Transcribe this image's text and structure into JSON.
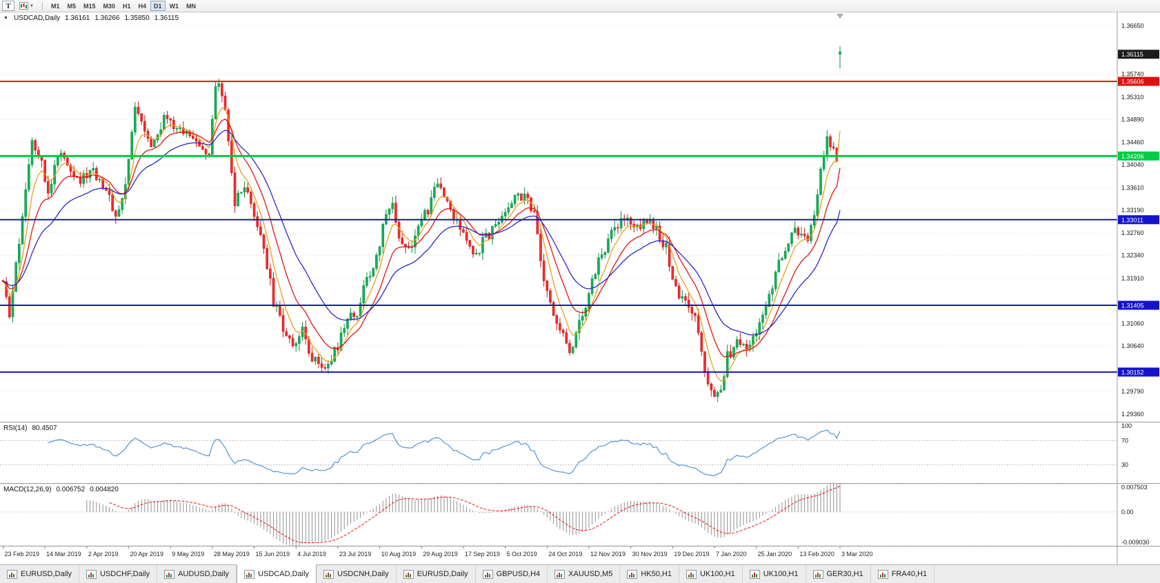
{
  "toolbar": {
    "tool_button_label": "T",
    "timeframes": [
      "M1",
      "M5",
      "M15",
      "M30",
      "H1",
      "H4",
      "D1",
      "W1",
      "MN"
    ],
    "active_timeframe": "D1"
  },
  "tabs": {
    "items": [
      {
        "label": "EURUSD,Daily"
      },
      {
        "label": "USDCHF,Daily"
      },
      {
        "label": "AUDUSD,Daily"
      },
      {
        "label": "USDCAD,Daily"
      },
      {
        "label": "USDCNH,Daily"
      },
      {
        "label": "EURUSD,Daily"
      },
      {
        "label": "GBPUSD,H4"
      },
      {
        "label": "XAUUSD,M5"
      },
      {
        "label": "HK50,H1"
      },
      {
        "label": "UK100,H1"
      },
      {
        "label": "UK100,H1"
      },
      {
        "label": "GER30,H1"
      },
      {
        "label": "FRA40,H1"
      }
    ],
    "active_index": 3
  },
  "chart_data": {
    "type": "candlestick",
    "title": "USDCAD,Daily",
    "ohlc_display": {
      "open": "1.36161",
      "high": "1.36266",
      "low": "1.35850",
      "close": "1.36115"
    },
    "bar_count": 261,
    "price_range": [
      1.2922,
      1.369
    ],
    "y_axis_labels": [
      "1.36650",
      "1.35740",
      "1.35310",
      "1.34890",
      "1.34460",
      "1.34040",
      "1.33610",
      "1.33190",
      "1.32760",
      "1.32340",
      "1.31910",
      "1.31060",
      "1.30640",
      "1.29790",
      "1.29360"
    ],
    "x_labels": [
      "23 Feb 2019",
      "14 Mar 2019",
      "2 Apr 2019",
      "20 Apr 2019",
      "9 May 2019",
      "28 May 2019",
      "15 Jun 2019",
      "4 Jul 2019",
      "23 Jul 2019",
      "10 Aug 2019",
      "29 Aug 2019",
      "17 Sep 2019",
      "5 Oct 2019",
      "24 Oct 2019",
      "12 Nov 2019",
      "30 Nov 2019",
      "19 Dec 2019",
      "7 Jan 2020",
      "25 Jan 2020",
      "13 Feb 2020",
      "3 Mar 2020"
    ],
    "x_label_every_bars": 13,
    "price_lines": [
      {
        "label": "1.36115",
        "value": 1.36115,
        "color": "#1c1c1c",
        "text_color": "#ffffff",
        "line": false,
        "width": 0,
        "name": "current-price"
      },
      {
        "label": "1.35606",
        "value": 1.35606,
        "color": "#dd1111",
        "text_color": "#ffffff",
        "line": true,
        "width": 2,
        "name": "resistance-line"
      },
      {
        "label": "1.34206",
        "value": 1.34206,
        "color": "#00cc44",
        "text_color": "#ffffff",
        "line": true,
        "width": 3,
        "name": "green-level-line"
      },
      {
        "label": "1.33011",
        "value": 1.33011,
        "color": "#1414cc",
        "text_color": "#ffffff",
        "line": true,
        "width": 2,
        "name": "blue-level-line-1"
      },
      {
        "label": "1.31405",
        "value": 1.31405,
        "color": "#1414cc",
        "text_color": "#ffffff",
        "line": true,
        "width": 2,
        "name": "blue-level-line-2"
      },
      {
        "label": "1.30152",
        "value": 1.30152,
        "color": "#1414cc",
        "text_color": "#ffffff",
        "line": true,
        "width": 2,
        "name": "blue-level-line-3"
      }
    ],
    "close_anchors": [
      [
        0,
        1.3175
      ],
      [
        2,
        1.312
      ],
      [
        4,
        1.321
      ],
      [
        7,
        1.3365
      ],
      [
        9,
        1.3452
      ],
      [
        12,
        1.342
      ],
      [
        14,
        1.3345
      ],
      [
        17,
        1.3425
      ],
      [
        20,
        1.3408
      ],
      [
        24,
        1.3375
      ],
      [
        28,
        1.3395
      ],
      [
        32,
        1.3358
      ],
      [
        35,
        1.3308
      ],
      [
        38,
        1.336
      ],
      [
        41,
        1.3518
      ],
      [
        44,
        1.3478
      ],
      [
        46,
        1.3438
      ],
      [
        50,
        1.3488
      ],
      [
        53,
        1.3475
      ],
      [
        57,
        1.3462
      ],
      [
        61,
        1.3445
      ],
      [
        64,
        1.3428
      ],
      [
        66,
        1.3542
      ],
      [
        67,
        1.355
      ],
      [
        69,
        1.3502
      ],
      [
        72,
        1.333
      ],
      [
        75,
        1.3362
      ],
      [
        78,
        1.3302
      ],
      [
        81,
        1.3252
      ],
      [
        84,
        1.3145
      ],
      [
        87,
        1.3098
      ],
      [
        90,
        1.307
      ],
      [
        93,
        1.309
      ],
      [
        96,
        1.3046
      ],
      [
        99,
        1.3022
      ],
      [
        101,
        1.3032
      ],
      [
        104,
        1.3066
      ],
      [
        107,
        1.311
      ],
      [
        110,
        1.313
      ],
      [
        113,
        1.3188
      ],
      [
        116,
        1.3226
      ],
      [
        119,
        1.3318
      ],
      [
        121,
        1.333
      ],
      [
        123,
        1.3272
      ],
      [
        126,
        1.3246
      ],
      [
        129,
        1.3286
      ],
      [
        132,
        1.332
      ],
      [
        135,
        1.337
      ],
      [
        138,
        1.3338
      ],
      [
        141,
        1.3292
      ],
      [
        144,
        1.326
      ],
      [
        147,
        1.324
      ],
      [
        150,
        1.3266
      ],
      [
        153,
        1.3294
      ],
      [
        156,
        1.332
      ],
      [
        159,
        1.3342
      ],
      [
        162,
        1.335
      ],
      [
        165,
        1.3308
      ],
      [
        168,
        1.3178
      ],
      [
        171,
        1.3128
      ],
      [
        174,
        1.3082
      ],
      [
        176,
        1.3056
      ],
      [
        179,
        1.3102
      ],
      [
        182,
        1.3158
      ],
      [
        185,
        1.3228
      ],
      [
        188,
        1.326
      ],
      [
        191,
        1.3292
      ],
      [
        194,
        1.3306
      ],
      [
        197,
        1.3288
      ],
      [
        200,
        1.3304
      ],
      [
        203,
        1.328
      ],
      [
        206,
        1.325
      ],
      [
        209,
        1.317
      ],
      [
        212,
        1.314
      ],
      [
        215,
        1.3116
      ],
      [
        217,
        1.305
      ],
      [
        219,
        1.299
      ],
      [
        221,
        1.296
      ],
      [
        223,
        1.2986
      ],
      [
        225,
        1.3046
      ],
      [
        228,
        1.307
      ],
      [
        231,
        1.306
      ],
      [
        234,
        1.3096
      ],
      [
        237,
        1.3142
      ],
      [
        240,
        1.3202
      ],
      [
        243,
        1.3246
      ],
      [
        246,
        1.3282
      ],
      [
        248,
        1.327
      ],
      [
        250,
        1.3254
      ],
      [
        252,
        1.3318
      ],
      [
        254,
        1.3392
      ],
      [
        256,
        1.3446
      ],
      [
        258,
        1.3428
      ],
      [
        259,
        1.3402
      ]
    ],
    "last_candle": {
      "o": 1.36161,
      "h": 1.36266,
      "l": 1.3585,
      "c": 1.36115
    },
    "up_color": "#0a8f43",
    "up_fill": "#12b25b",
    "down_color": "#c81414",
    "down_fill": "#f52c2c",
    "moving_averages": [
      {
        "name": "ma-fast-orange",
        "period": 6,
        "color": "#e6a117"
      },
      {
        "name": "ma-mid-red",
        "period": 13,
        "color": "#e11212"
      },
      {
        "name": "ma-slow-blue",
        "period": 26,
        "color": "#2828c8"
      }
    ],
    "rsi": {
      "label": "RSI(14)",
      "value": "80.4507",
      "period": 14,
      "range": [
        0,
        100
      ],
      "color": "#4f93d2",
      "levels": [
        {
          "label": "100",
          "v": 100,
          "dashed": false
        },
        {
          "label": "70",
          "v": 70,
          "dashed": true
        },
        {
          "label": "30",
          "v": 30,
          "dashed": true
        }
      ]
    },
    "macd": {
      "label": "MACD(12,26,9)",
      "value_main": "0.006752",
      "value_signal": "0.004820",
      "fast": 12,
      "slow": 26,
      "signal": 9,
      "range": [
        -0.00903,
        0.007503
      ],
      "hist_color": "#8f8f8f",
      "signal_color": "#ee1111",
      "axis": [
        {
          "label": "0.007503",
          "v": 0.007503
        },
        {
          "label": "0.00",
          "v": 0
        },
        {
          "label": "-0.009030",
          "v": -0.00903
        }
      ]
    }
  }
}
